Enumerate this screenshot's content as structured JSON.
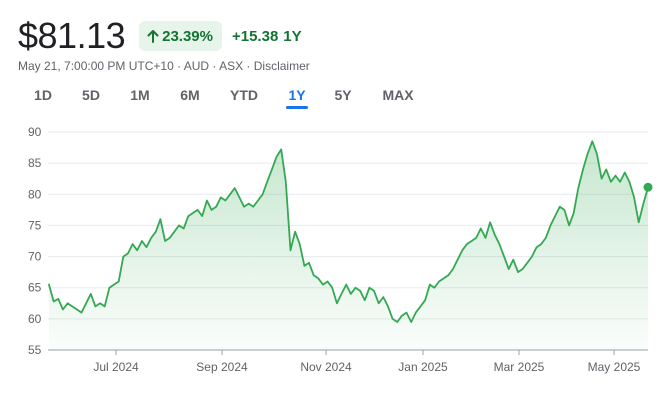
{
  "header": {
    "price": "$81.13",
    "change_pct": "23.39%",
    "change_abs": "+15.38",
    "period": "1Y"
  },
  "meta": {
    "text": "May 21, 7:00:00 PM UTC+10 · AUD · ASX · Disclaimer"
  },
  "range_tabs": [
    {
      "label": "1D",
      "active": false
    },
    {
      "label": "5D",
      "active": false
    },
    {
      "label": "1M",
      "active": false
    },
    {
      "label": "6M",
      "active": false
    },
    {
      "label": "YTD",
      "active": false
    },
    {
      "label": "1Y",
      "active": true
    },
    {
      "label": "5Y",
      "active": false
    },
    {
      "label": "MAX",
      "active": false
    }
  ],
  "colors": {
    "line": "#34a853",
    "positive_text": "#137333",
    "badge_bg": "#e6f4ea",
    "active_tab": "#1a73e8",
    "grid": "#e8eaed"
  },
  "chart_data": {
    "type": "area",
    "title": "",
    "xlabel": "",
    "ylabel": "",
    "ylim": [
      55,
      90
    ],
    "yticks": [
      90,
      85,
      80,
      75,
      70,
      65,
      60,
      55
    ],
    "xticks": [
      "Jul 2024",
      "Sep 2024",
      "Nov 2024",
      "Jan 2025",
      "Mar 2025",
      "May 2025"
    ],
    "grid": true,
    "series": [
      {
        "values": [
          65.5,
          62.8,
          63.2,
          61.5,
          62.5,
          62.0,
          61.5,
          61.0,
          62.5,
          64.0,
          62.0,
          62.5,
          62.0,
          65.0,
          65.5,
          66.0,
          70.0,
          70.5,
          72.0,
          71.0,
          72.5,
          71.5,
          73.0,
          74.0,
          76.0,
          72.5,
          73.0,
          74.0,
          75.0,
          74.5,
          76.5,
          77.0,
          77.5,
          76.5,
          79.0,
          77.5,
          78.0,
          79.5,
          79.0,
          80.0,
          81.0,
          79.5,
          78.0,
          78.5,
          78.0,
          79.0,
          80.0,
          82.0,
          84.0,
          86.0,
          87.2,
          82.0,
          71.0,
          74.0,
          72.0,
          68.5,
          69.0,
          67.0,
          66.5,
          65.5,
          66.0,
          65.0,
          62.5,
          64.0,
          65.5,
          64.0,
          65.0,
          64.5,
          63.0,
          65.0,
          64.5,
          62.5,
          63.5,
          62.0,
          60.0,
          59.5,
          60.5,
          61.0,
          59.5,
          61.0,
          62.0,
          63.0,
          65.5,
          65.0,
          66.0,
          66.5,
          67.0,
          68.0,
          69.5,
          71.0,
          72.0,
          72.5,
          73.0,
          74.5,
          73.0,
          75.5,
          73.5,
          72.0,
          70.0,
          68.0,
          69.5,
          67.5,
          68.0,
          69.0,
          70.0,
          71.5,
          72.0,
          73.0,
          75.0,
          76.5,
          78.0,
          77.5,
          75.0,
          77.0,
          81.0,
          84.0,
          86.5,
          88.5,
          86.5,
          82.5,
          84.0,
          82.0,
          83.0,
          82.0,
          83.5,
          82.0,
          79.5,
          75.5,
          78.5,
          81.13
        ]
      }
    ]
  }
}
